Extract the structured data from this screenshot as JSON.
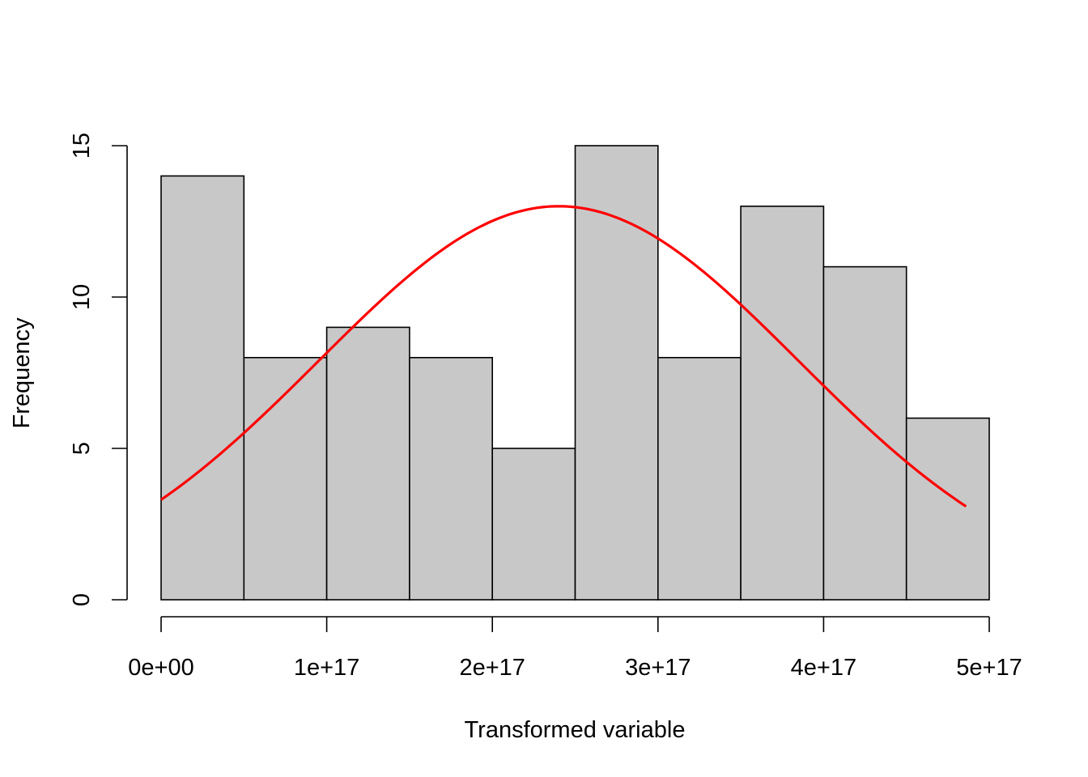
{
  "chart_data": {
    "type": "histogram",
    "title": "",
    "xlabel": "Transformed variable",
    "ylabel": "Frequency",
    "bin_edges": [
      0,
      5e+16,
      1e+17,
      1.5e+17,
      2e+17,
      2.5e+17,
      3e+17,
      3.5e+17,
      4e+17,
      4.5e+17,
      5e+17
    ],
    "counts": [
      14,
      8,
      9,
      8,
      5,
      15,
      8,
      13,
      11,
      6
    ],
    "bar_color": "#c8c8c8",
    "bar_border": "#000000",
    "xlim": [
      0,
      5e+17
    ],
    "ylim": [
      0,
      15
    ],
    "x_ticks": [
      0,
      1e+17,
      2e+17,
      3e+17,
      4e+17,
      5e+17
    ],
    "x_tick_labels": [
      "0e+00",
      "1e+17",
      "2e+17",
      "3e+17",
      "4e+17",
      "5e+17"
    ],
    "y_ticks": [
      0,
      5,
      10,
      15
    ],
    "y_tick_labels": [
      "0",
      "5",
      "10",
      "15"
    ],
    "grid": false,
    "overlay": {
      "type": "normal-density-curve",
      "color": "#ff0000",
      "mean": 2.4e+17,
      "peak": 13,
      "sd": 1.45e+17,
      "x_range": [
        0,
        4.86e+17
      ]
    }
  }
}
